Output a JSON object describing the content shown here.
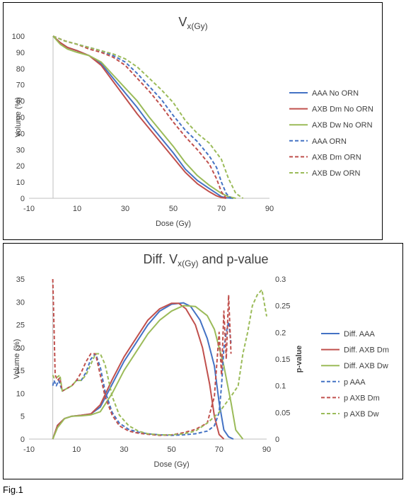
{
  "figure_label": "Fig.1",
  "chart_data": [
    {
      "type": "line",
      "title_main": "V",
      "title_sub": "x(Gy)",
      "xlabel": "Dose (Gy)",
      "ylabel": "Volume (%)",
      "xlim": [
        -10,
        90
      ],
      "ylim": [
        0,
        100
      ],
      "xticks": [
        "-10",
        "10",
        "30",
        "50",
        "70",
        "90"
      ],
      "yticks": [
        "0",
        "10",
        "20",
        "30",
        "40",
        "50",
        "60",
        "70",
        "80",
        "90",
        "100"
      ],
      "legend_position": "right",
      "grid": false,
      "series": [
        {
          "name": "AAA No ORN",
          "color": "#4472c4",
          "dash": false,
          "x": [
            0,
            3,
            6,
            10,
            15,
            20,
            25,
            30,
            35,
            40,
            45,
            50,
            55,
            60,
            65,
            68,
            70,
            72,
            75
          ],
          "y": [
            100,
            96,
            93,
            91,
            88,
            83,
            74,
            65,
            56,
            46,
            37,
            28,
            18,
            11,
            6,
            3,
            1,
            0.3,
            0
          ]
        },
        {
          "name": "AXB Dm No ORN",
          "color": "#c0504d",
          "dash": false,
          "x": [
            0,
            3,
            6,
            10,
            15,
            20,
            25,
            30,
            35,
            40,
            45,
            50,
            55,
            60,
            65,
            68,
            70,
            72
          ],
          "y": [
            100,
            96,
            93,
            91,
            88,
            82,
            72,
            62,
            52,
            43,
            34,
            25,
            16,
            9,
            4,
            1.5,
            0.5,
            0
          ]
        },
        {
          "name": "AXB Dw No ORN",
          "color": "#9bbb59",
          "dash": false,
          "x": [
            0,
            3,
            6,
            10,
            15,
            20,
            25,
            30,
            35,
            40,
            45,
            50,
            55,
            60,
            65,
            70,
            73,
            76
          ],
          "y": [
            100,
            95,
            92,
            90,
            88,
            84,
            76,
            68,
            60,
            50,
            41,
            32,
            22,
            14,
            8,
            3,
            1,
            0
          ]
        },
        {
          "name": "AAA ORN",
          "color": "#4472c4",
          "dash": true,
          "x": [
            0,
            5,
            10,
            15,
            20,
            25,
            30,
            35,
            40,
            45,
            50,
            55,
            60,
            65,
            68,
            70,
            72,
            74
          ],
          "y": [
            100,
            97,
            95,
            93,
            91,
            88,
            84,
            77,
            69,
            61,
            51,
            42,
            35,
            26,
            19,
            10,
            3,
            0
          ]
        },
        {
          "name": "AXB Dm ORN",
          "color": "#c0504d",
          "dash": true,
          "x": [
            0,
            5,
            10,
            15,
            20,
            25,
            30,
            35,
            40,
            45,
            50,
            55,
            60,
            65,
            68,
            70,
            72
          ],
          "y": [
            100,
            97,
            95,
            92,
            90,
            87,
            82,
            74,
            66,
            57,
            47,
            38,
            30,
            21,
            12,
            4,
            0
          ]
        },
        {
          "name": "AXB Dw ORN",
          "color": "#9bbb59",
          "dash": true,
          "x": [
            0,
            5,
            10,
            15,
            20,
            25,
            30,
            35,
            40,
            45,
            50,
            55,
            60,
            65,
            70,
            73,
            76,
            79
          ],
          "y": [
            100,
            97,
            95,
            93,
            91,
            89,
            86,
            81,
            74,
            67,
            59,
            48,
            40,
            34,
            24,
            12,
            3,
            0
          ]
        }
      ]
    },
    {
      "type": "line",
      "title_main": "Diff. V",
      "title_sub": "x(Gy)",
      "title_tail": " and p-value",
      "xlabel": "Dose (Gy)",
      "ylabel": "Volume (%)",
      "y2label": "p-value",
      "xlim": [
        -10,
        90
      ],
      "ylim": [
        0,
        35
      ],
      "y2lim": [
        0,
        0.3
      ],
      "xticks": [
        "-10",
        "10",
        "30",
        "50",
        "70",
        "90"
      ],
      "yticks": [
        "0",
        "5",
        "10",
        "15",
        "20",
        "25",
        "30",
        "35"
      ],
      "y2ticks": [
        "0",
        "0.05",
        "0.1",
        "0.15",
        "0.2",
        "0.25",
        "0.3"
      ],
      "legend_position": "right",
      "grid": false,
      "series": [
        {
          "name": "Diff. AAA",
          "color": "#4472c4",
          "dash": false,
          "axis": "left",
          "x": [
            0,
            2,
            5,
            8,
            12,
            16,
            20,
            25,
            30,
            35,
            40,
            45,
            50,
            55,
            58,
            62,
            65,
            68,
            70,
            72,
            74,
            76
          ],
          "y": [
            0,
            3,
            4.5,
            5,
            5.2,
            5.5,
            7,
            12,
            17,
            21,
            25,
            28,
            29.5,
            29.8,
            29,
            26,
            22,
            16,
            8,
            2,
            0.5,
            0
          ]
        },
        {
          "name": "Diff. AXB Dm",
          "color": "#c0504d",
          "dash": false,
          "axis": "left",
          "x": [
            0,
            2,
            5,
            8,
            12,
            16,
            20,
            25,
            30,
            35,
            40,
            45,
            50,
            53,
            56,
            60,
            63,
            66,
            68,
            70,
            72
          ],
          "y": [
            0,
            3,
            4.5,
            5,
            5.2,
            5.5,
            7.5,
            13,
            18,
            22,
            26,
            28.5,
            29.7,
            29.7,
            28.5,
            25,
            20,
            12,
            5,
            1,
            0
          ]
        },
        {
          "name": "Diff. AXB Dw",
          "color": "#9bbb59",
          "dash": false,
          "axis": "left",
          "x": [
            0,
            2,
            5,
            8,
            12,
            16,
            20,
            25,
            30,
            35,
            40,
            45,
            50,
            55,
            60,
            65,
            68,
            72,
            75,
            77,
            80
          ],
          "y": [
            0,
            2.5,
            4.5,
            5,
            5.1,
            5.3,
            6,
            10,
            15,
            19,
            23,
            26,
            28,
            29.2,
            29,
            27,
            24,
            16,
            8,
            2,
            0
          ]
        },
        {
          "name": "p AAA",
          "color": "#4472c4",
          "dash": true,
          "axis": "right",
          "x": [
            0,
            0.5,
            1.5,
            2.5,
            4,
            6,
            8,
            10,
            12,
            14,
            16,
            18,
            20,
            22,
            25,
            28,
            32,
            36,
            40,
            45,
            50,
            55,
            60,
            65,
            68,
            70,
            71,
            72,
            73,
            74,
            75
          ],
          "y": [
            0.1,
            0.11,
            0.1,
            0.11,
            0.09,
            0.095,
            0.1,
            0.11,
            0.11,
            0.125,
            0.15,
            0.16,
            0.135,
            0.09,
            0.05,
            0.03,
            0.018,
            0.013,
            0.01,
            0.008,
            0.007,
            0.008,
            0.01,
            0.015,
            0.025,
            0.05,
            0.1,
            0.17,
            0.2,
            0.22,
            0.18
          ]
        },
        {
          "name": "p AXB Dm",
          "color": "#c0504d",
          "dash": true,
          "axis": "right",
          "x": [
            0,
            0.3,
            1,
            2,
            3,
            4,
            6,
            8,
            10,
            12,
            14,
            16,
            18,
            20,
            22,
            25,
            28,
            32,
            36,
            40,
            45,
            50,
            55,
            60,
            65,
            68,
            70,
            71,
            72,
            73,
            74,
            75
          ],
          "y": [
            0.3,
            0.25,
            0.12,
            0.11,
            0.115,
            0.09,
            0.095,
            0.1,
            0.11,
            0.125,
            0.145,
            0.16,
            0.16,
            0.12,
            0.08,
            0.045,
            0.025,
            0.015,
            0.011,
            0.009,
            0.007,
            0.008,
            0.012,
            0.018,
            0.03,
            0.08,
            0.2,
            0.12,
            0.24,
            0.15,
            0.27,
            0.16
          ]
        },
        {
          "name": "p AXB Dw",
          "color": "#9bbb59",
          "dash": true,
          "axis": "right",
          "x": [
            0,
            0.5,
            1.5,
            3,
            4,
            6,
            8,
            10,
            12,
            14,
            16,
            18,
            20,
            22,
            25,
            28,
            32,
            36,
            40,
            45,
            50,
            55,
            60,
            65,
            70,
            75,
            78,
            80,
            82,
            84,
            86,
            88,
            90
          ],
          "y": [
            0.12,
            0.115,
            0.115,
            0.12,
            0.09,
            0.095,
            0.1,
            0.11,
            0.11,
            0.12,
            0.14,
            0.16,
            0.16,
            0.14,
            0.08,
            0.045,
            0.025,
            0.015,
            0.01,
            0.008,
            0.008,
            0.01,
            0.015,
            0.03,
            0.05,
            0.08,
            0.1,
            0.16,
            0.2,
            0.25,
            0.27,
            0.28,
            0.23
          ]
        }
      ]
    }
  ]
}
